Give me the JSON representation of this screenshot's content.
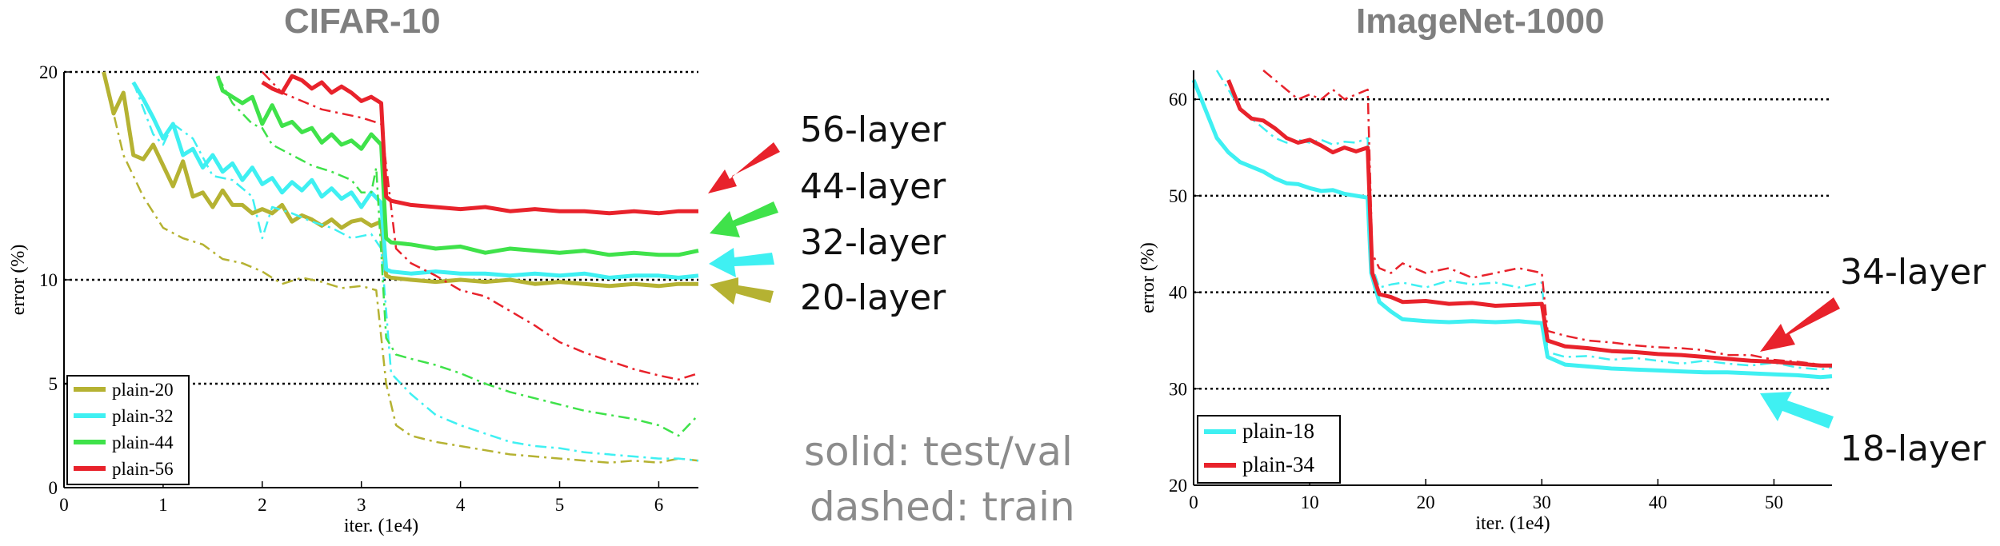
{
  "notes": {
    "solid": "solid: test/val",
    "dashed": "dashed: train"
  },
  "colors": {
    "plain-18": "#3ff0f2",
    "plain-20": "#b5b232",
    "plain-32": "#3ff0f2",
    "plain-34": "#e8222b",
    "plain-44": "#3fe24a",
    "plain-56": "#e8222b"
  },
  "chart_data": [
    {
      "type": "line",
      "title": "CIFAR-10",
      "xlabel": "iter. (1e4)",
      "ylabel": "error (%)",
      "xlim": [
        0,
        6.4
      ],
      "ylim": [
        0,
        20
      ],
      "xticks": [
        "0",
        "1",
        "2",
        "3",
        "4",
        "5",
        "6"
      ],
      "yticks": [
        "0",
        "5",
        "10",
        "20"
      ],
      "grid_y": [
        5,
        10,
        20
      ],
      "legend": [
        "plain-20",
        "plain-32",
        "plain-44",
        "plain-56"
      ],
      "legend_position": "bottom-left",
      "arrow_labels": [
        "56-layer",
        "44-layer",
        "32-layer",
        "20-layer"
      ],
      "series": [
        {
          "name": "plain-20",
          "style": "solid",
          "x": [
            0.4,
            0.5,
            0.6,
            0.7,
            0.8,
            0.9,
            1,
            1.1,
            1.2,
            1.3,
            1.4,
            1.5,
            1.6,
            1.7,
            1.8,
            1.9,
            2,
            2.1,
            2.2,
            2.3,
            2.4,
            2.5,
            2.6,
            2.7,
            2.8,
            2.9,
            3,
            3.1,
            3.2,
            3.25,
            3.3,
            3.5,
            3.75,
            4,
            4.25,
            4.5,
            4.75,
            5,
            5.25,
            5.5,
            5.75,
            6,
            6.2,
            6.4
          ],
          "y": [
            20,
            18,
            19,
            16,
            15.8,
            16.5,
            15.5,
            14.5,
            15.7,
            14,
            14.2,
            13.5,
            14.3,
            13.6,
            13.6,
            13.2,
            13.4,
            13.2,
            13.6,
            12.8,
            13.1,
            12.9,
            12.6,
            12.9,
            12.5,
            12.8,
            12.9,
            12.6,
            12.8,
            10.2,
            10.1,
            10.0,
            9.9,
            10.0,
            9.9,
            10.0,
            9.8,
            9.9,
            9.8,
            9.7,
            9.8,
            9.7,
            9.8,
            9.8
          ]
        },
        {
          "name": "plain-20",
          "style": "dashdot",
          "x": [
            0.4,
            0.6,
            0.8,
            1,
            1.2,
            1.4,
            1.6,
            1.8,
            2,
            2.2,
            2.4,
            2.6,
            2.8,
            3,
            3.15,
            3.25,
            3.35,
            3.5,
            3.75,
            4,
            4.25,
            4.5,
            4.75,
            5,
            5.25,
            5.5,
            5.75,
            6,
            6.2,
            6.4
          ],
          "y": [
            20,
            16,
            14,
            12.5,
            12,
            11.7,
            11,
            10.8,
            10.4,
            9.8,
            10.1,
            9.9,
            9.6,
            9.7,
            9.5,
            5,
            3,
            2.5,
            2.2,
            2.0,
            1.8,
            1.6,
            1.5,
            1.4,
            1.3,
            1.2,
            1.3,
            1.2,
            1.4,
            1.3
          ]
        },
        {
          "name": "plain-32",
          "style": "solid",
          "x": [
            0.7,
            0.8,
            0.9,
            1,
            1.1,
            1.2,
            1.3,
            1.4,
            1.5,
            1.6,
            1.7,
            1.8,
            1.9,
            2,
            2.1,
            2.2,
            2.3,
            2.4,
            2.5,
            2.6,
            2.7,
            2.8,
            2.9,
            3,
            3.1,
            3.2,
            3.25,
            3.3,
            3.5,
            3.75,
            4,
            4.25,
            4.5,
            4.75,
            5,
            5.25,
            5.5,
            5.75,
            6,
            6.2,
            6.4
          ],
          "y": [
            19.5,
            18.7,
            17.8,
            16.8,
            17.5,
            16.0,
            16.3,
            15.4,
            16.0,
            15.2,
            15.6,
            14.8,
            15.4,
            14.6,
            14.9,
            14.2,
            14.7,
            14.3,
            14.8,
            14.0,
            14.4,
            13.9,
            14.2,
            13.5,
            14.2,
            13.7,
            10.5,
            10.4,
            10.3,
            10.4,
            10.3,
            10.3,
            10.2,
            10.3,
            10.2,
            10.3,
            10.1,
            10.2,
            10.2,
            10.1,
            10.2
          ]
        },
        {
          "name": "plain-32",
          "style": "dashdot",
          "x": [
            0.7,
            0.9,
            1,
            1.1,
            1.3,
            1.5,
            1.7,
            1.9,
            2,
            2.1,
            2.3,
            2.5,
            2.7,
            2.9,
            3.1,
            3.2,
            3.3,
            3.5,
            3.75,
            4,
            4.25,
            4.5,
            4.75,
            5,
            5.25,
            5.5,
            5.75,
            6,
            6.2,
            6.4
          ],
          "y": [
            19.5,
            17,
            16.5,
            17.5,
            16.8,
            15,
            14.8,
            14,
            12,
            13.5,
            13.2,
            12.8,
            12.5,
            12.0,
            12.2,
            11.5,
            5.5,
            4.5,
            3.5,
            3.0,
            2.6,
            2.2,
            2.0,
            1.9,
            1.7,
            1.6,
            1.5,
            1.4,
            1.4,
            1.3
          ]
        },
        {
          "name": "plain-44",
          "style": "solid",
          "x": [
            1.55,
            1.6,
            1.7,
            1.8,
            1.9,
            2,
            2.1,
            2.2,
            2.3,
            2.4,
            2.5,
            2.6,
            2.7,
            2.8,
            2.9,
            3,
            3.1,
            3.2,
            3.25,
            3.3,
            3.5,
            3.75,
            4,
            4.25,
            4.5,
            4.75,
            5,
            5.25,
            5.5,
            5.75,
            6,
            6.2,
            6.4
          ],
          "y": [
            19.8,
            19.1,
            18.8,
            18.5,
            18.8,
            17.5,
            18.4,
            17.4,
            17.6,
            17.1,
            17.3,
            16.6,
            17.0,
            16.5,
            16.7,
            16.3,
            17.0,
            16.5,
            12.0,
            11.8,
            11.7,
            11.5,
            11.6,
            11.3,
            11.5,
            11.4,
            11.3,
            11.4,
            11.2,
            11.3,
            11.2,
            11.2,
            11.4
          ]
        },
        {
          "name": "plain-44",
          "style": "dashdot",
          "x": [
            1.55,
            1.7,
            1.9,
            2,
            2.1,
            2.3,
            2.5,
            2.7,
            2.9,
            3.0,
            3.1,
            3.15,
            3.25,
            3.35,
            3.5,
            3.75,
            4,
            4.25,
            4.5,
            4.75,
            5,
            5.25,
            5.5,
            5.75,
            6,
            6.2,
            6.4
          ],
          "y": [
            19.8,
            18.5,
            17.5,
            17.3,
            16.5,
            16,
            15.5,
            15.2,
            14.8,
            14.2,
            14.2,
            15.4,
            7.2,
            6.4,
            6.2,
            5.9,
            5.5,
            5.0,
            4.6,
            4.3,
            4.0,
            3.7,
            3.5,
            3.3,
            3.0,
            2.5,
            3.5
          ]
        },
        {
          "name": "plain-56",
          "style": "solid",
          "x": [
            2.0,
            2.1,
            2.2,
            2.3,
            2.4,
            2.5,
            2.6,
            2.7,
            2.8,
            2.9,
            3,
            3.1,
            3.2,
            3.25,
            3.3,
            3.5,
            3.75,
            4,
            4.25,
            4.5,
            4.75,
            5,
            5.25,
            5.5,
            5.75,
            6,
            6.2,
            6.4
          ],
          "y": [
            19.5,
            19.2,
            19.0,
            19.8,
            19.6,
            19.2,
            19.5,
            19.0,
            19.3,
            19.0,
            18.6,
            18.8,
            18.5,
            14.0,
            13.8,
            13.6,
            13.5,
            13.4,
            13.5,
            13.3,
            13.4,
            13.3,
            13.3,
            13.2,
            13.3,
            13.2,
            13.3,
            13.3
          ]
        },
        {
          "name": "plain-56",
          "style": "dashdot",
          "x": [
            2.0,
            2.2,
            2.4,
            2.6,
            2.8,
            3,
            3.2,
            3.35,
            3.5,
            3.75,
            4,
            4.25,
            4.5,
            4.75,
            5,
            5.25,
            5.5,
            5.75,
            6,
            6.2,
            6.4
          ],
          "y": [
            20,
            19,
            18.6,
            18.2,
            18,
            17.8,
            17.5,
            11.5,
            10.8,
            10.2,
            9.5,
            9.2,
            8.5,
            7.8,
            7.0,
            6.5,
            6.1,
            5.7,
            5.4,
            5.2,
            5.5
          ]
        }
      ]
    },
    {
      "type": "line",
      "title": "ImageNet-1000",
      "xlabel": "iter. (1e4)",
      "ylabel": "error (%)",
      "xlim": [
        0,
        55
      ],
      "ylim": [
        20,
        63
      ],
      "xticks": [
        "0",
        "10",
        "20",
        "30",
        "40",
        "50"
      ],
      "yticks": [
        "20",
        "30",
        "40",
        "50",
        "60"
      ],
      "grid_y": [
        30,
        40,
        50,
        60
      ],
      "legend": [
        "plain-18",
        "plain-34"
      ],
      "legend_position": "bottom-left",
      "arrow_labels": [
        "34-layer",
        "18-layer"
      ],
      "series": [
        {
          "name": "plain-18",
          "style": "solid",
          "x": [
            0,
            1,
            2,
            3,
            4,
            5,
            6,
            7,
            8,
            9,
            10,
            11,
            12,
            13,
            14,
            15,
            15.3,
            16,
            17,
            18,
            20,
            22,
            24,
            26,
            28,
            30,
            30.5,
            32,
            34,
            36,
            38,
            40,
            42,
            44,
            46,
            48,
            50,
            52,
            54,
            55
          ],
          "y": [
            62,
            59,
            56,
            54.5,
            53.5,
            53,
            52.5,
            51.8,
            51.3,
            51.2,
            50.8,
            50.5,
            50.6,
            50.2,
            50.0,
            49.8,
            42,
            39,
            38,
            37.2,
            37.0,
            36.9,
            37.0,
            36.9,
            37.0,
            36.8,
            33.3,
            32.5,
            32.3,
            32.1,
            32.0,
            31.9,
            31.8,
            31.7,
            31.7,
            31.6,
            31.5,
            31.4,
            31.2,
            31.3
          ]
        },
        {
          "name": "plain-18",
          "style": "dashdot",
          "x": [
            2,
            3,
            4,
            5,
            6,
            7,
            8,
            9,
            10,
            11,
            12,
            13,
            14,
            15,
            15.3,
            16,
            17,
            18,
            20,
            22,
            24,
            26,
            28,
            30,
            30.5,
            32,
            34,
            36,
            38,
            40,
            42,
            44,
            46,
            48,
            50,
            52,
            54,
            55
          ],
          "y": [
            63,
            61,
            59,
            58,
            57,
            56,
            55.5,
            55.8,
            55.5,
            55.8,
            55.3,
            55.6,
            55.5,
            56,
            43,
            40.5,
            40.8,
            41,
            40.5,
            41.2,
            40.8,
            41,
            40.5,
            41,
            33.8,
            33.3,
            33.4,
            33,
            33.2,
            32.9,
            32.6,
            32.9,
            32.6,
            32.4,
            32.7,
            32.2,
            32.0,
            32.2
          ]
        },
        {
          "name": "plain-34",
          "style": "solid",
          "x": [
            3,
            3.5,
            4,
            5,
            6,
            7,
            8,
            9,
            10,
            11,
            12,
            13,
            14,
            15,
            15.4,
            16,
            17,
            18,
            20,
            22,
            24,
            26,
            28,
            30,
            30.5,
            32,
            34,
            36,
            38,
            40,
            42,
            44,
            46,
            48,
            50,
            52,
            54,
            55
          ],
          "y": [
            62,
            60.5,
            59,
            58,
            57.8,
            57,
            56,
            55.5,
            55.8,
            55.2,
            54.5,
            55,
            54.6,
            55,
            42,
            39.8,
            39.5,
            39,
            39.1,
            38.8,
            38.9,
            38.6,
            38.7,
            38.8,
            35,
            34.4,
            34.2,
            33.9,
            33.8,
            33.6,
            33.5,
            33.3,
            33.1,
            32.9,
            32.8,
            32.6,
            32.4,
            32.4
          ]
        },
        {
          "name": "plain-34",
          "style": "dashdot",
          "x": [
            6,
            7,
            8,
            9,
            10,
            11,
            12,
            13,
            14,
            15,
            15.4,
            16,
            17,
            18,
            20,
            22,
            24,
            26,
            28,
            30,
            30.5,
            32,
            34,
            36,
            38,
            40,
            42,
            44,
            46,
            48,
            50,
            52,
            54,
            55
          ],
          "y": [
            63,
            62,
            61,
            60,
            60.5,
            60,
            61,
            60,
            60.5,
            61,
            44,
            42.5,
            42,
            43,
            42,
            42.5,
            41.5,
            42,
            42.5,
            42,
            36,
            35.5,
            35,
            34.8,
            34.5,
            34.3,
            34.2,
            34.0,
            33.5,
            33.5,
            33.0,
            32.8,
            32.5,
            32.3
          ]
        }
      ]
    }
  ]
}
